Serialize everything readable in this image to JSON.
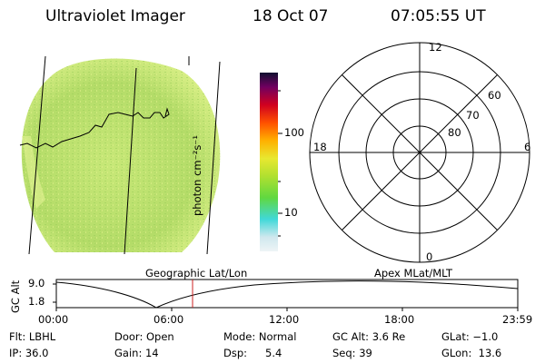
{
  "header": {
    "title": "Ultraviolet Imager",
    "date": "18 Oct 07",
    "time": "07:05:55 UT"
  },
  "colorbar": {
    "unit_label": "photon cm⁻²s⁻¹",
    "ticks": [
      "100",
      "10"
    ],
    "colors": [
      "#e8f0f4",
      "#cce8ec",
      "#40d8d8",
      "#80e020",
      "#d0e830",
      "#ffd000",
      "#ff9000",
      "#ff2000",
      "#c00020",
      "#800060",
      "#201040"
    ]
  },
  "polar_plot": {
    "mlt_labels": {
      "top": "12",
      "left": "18",
      "right": "6",
      "bottom": "0"
    },
    "lat_labels": [
      "60",
      "70",
      "80"
    ]
  },
  "globe_image": {
    "fill_color": "#b8e070",
    "edge_color": "#d8f080"
  },
  "altitude_panel": {
    "left_caption": "Geographic Lat/Lon",
    "right_caption": "Apex MLat/MLT",
    "ylabel": "GC Alt",
    "yticks": [
      "9.0",
      "1.8"
    ],
    "xticks": [
      "00:00",
      "06:00",
      "12:00",
      "18:00",
      "23:59"
    ],
    "current_time_marker": "07:05",
    "marker_color": "#cc2020"
  },
  "info": {
    "flt": "Flt: LBHL",
    "ip": "IP: 36.0",
    "door": "Door: Open",
    "gain": "Gain: 14",
    "mode": "Mode: Normal",
    "dsp_label": "Dsp:",
    "dsp_value": "5.4",
    "gc_alt": "GC Alt: 3.6 Re",
    "seq": "Seq: 39",
    "glat": "GLat: −1.0",
    "glon": "GLon:  13.6"
  }
}
